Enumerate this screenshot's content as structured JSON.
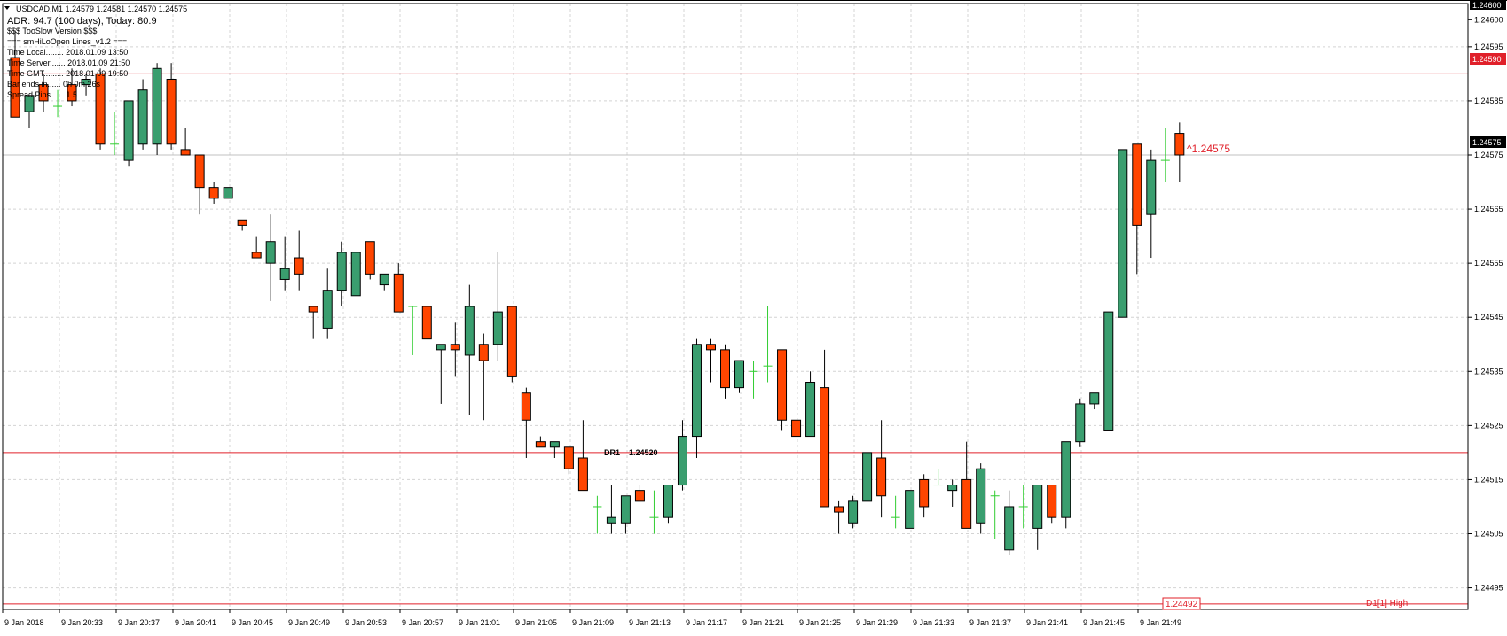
{
  "header": {
    "symbol_line": "USDCAD,M1  1.24579 1.24581 1.24570 1.24575",
    "adr_line": "ADR: 94.7 (100 days), Today: 80.9",
    "info_lines": [
      "$$$ TooSlow Version $$$",
      "=== smHiLoOpen Lines_v1.2 ===",
      "Time Local........ 2018.01.09 13:50",
      "Time Server....... 2018.01.09 21:50",
      "Time GMT......... 2018.01.09 19:50",
      "Bar ends in...... 0h 0m 26s",
      "Spread Pips...... 1.5"
    ]
  },
  "price_tags": {
    "current": "1.24575",
    "top": "1.24600",
    "upper_line": "1.24590",
    "lower_line": "1.24492"
  },
  "annotations": {
    "dr1_label": "DR1",
    "dr1_value": "1.24520",
    "bid_label": "^1.24575",
    "d1_high": "D1[1] High"
  },
  "colors": {
    "bull": "#3A9E6F",
    "bear": "#FF4500",
    "doji": "#32CD32",
    "grid": "#D4D4D4",
    "level_line": "#E0202A",
    "tag_bg": "#E0202A",
    "current_tag_bg": "#000000"
  },
  "chart_data": {
    "type": "candlestick",
    "symbol": "USDCAD",
    "timeframe": "M1",
    "ylim": [
      1.24491,
      1.24603
    ],
    "y_ticks": [
      "1.24600",
      "1.24595",
      "1.24585",
      "1.24575",
      "1.24565",
      "1.24555",
      "1.24545",
      "1.24535",
      "1.24525",
      "1.24515",
      "1.24505",
      "1.24495"
    ],
    "x_ticks": [
      "9 Jan 2018",
      "9 Jan 20:33",
      "9 Jan 20:37",
      "9 Jan 20:41",
      "9 Jan 20:45",
      "9 Jan 20:49",
      "9 Jan 20:53",
      "9 Jan 20:57",
      "9 Jan 21:01",
      "9 Jan 21:05",
      "9 Jan 21:09",
      "9 Jan 21:13",
      "9 Jan 21:17",
      "9 Jan 21:21",
      "9 Jan 21:25",
      "9 Jan 21:29",
      "9 Jan 21:33",
      "9 Jan 21:37",
      "9 Jan 21:41",
      "9 Jan 21:45",
      "9 Jan 21:49"
    ],
    "levels": [
      {
        "name": "DR1",
        "value": 1.2452
      },
      {
        "name": "upper",
        "value": 1.2459
      },
      {
        "name": "D1[1] High",
        "value": 1.24492
      }
    ],
    "candles": [
      {
        "o": 1.24593,
        "h": 1.24598,
        "l": 1.24582,
        "c": 1.24582
      },
      {
        "o": 1.24583,
        "h": 1.24586,
        "l": 1.2458,
        "c": 1.24586
      },
      {
        "o": 1.24588,
        "h": 1.2459,
        "l": 1.24583,
        "c": 1.24585
      },
      {
        "o": 1.24584,
        "h": 1.24587,
        "l": 1.24582,
        "c": 1.24584
      },
      {
        "o": 1.24588,
        "h": 1.24591,
        "l": 1.24584,
        "c": 1.24585
      },
      {
        "o": 1.24588,
        "h": 1.2459,
        "l": 1.24586,
        "c": 1.24589
      },
      {
        "o": 1.2459,
        "h": 1.24591,
        "l": 1.24576,
        "c": 1.24577
      },
      {
        "o": 1.24577,
        "h": 1.24583,
        "l": 1.24575,
        "c": 1.24577
      },
      {
        "o": 1.24574,
        "h": 1.24585,
        "l": 1.24573,
        "c": 1.24585
      },
      {
        "o": 1.24577,
        "h": 1.24589,
        "l": 1.24576,
        "c": 1.24587
      },
      {
        "o": 1.24577,
        "h": 1.24592,
        "l": 1.24575,
        "c": 1.24591
      },
      {
        "o": 1.24589,
        "h": 1.24592,
        "l": 1.24576,
        "c": 1.24577
      },
      {
        "o": 1.24576,
        "h": 1.2458,
        "l": 1.24575,
        "c": 1.24575
      },
      {
        "o": 1.24575,
        "h": 1.24575,
        "l": 1.24564,
        "c": 1.24569
      },
      {
        "o": 1.24569,
        "h": 1.2457,
        "l": 1.24566,
        "c": 1.24567
      },
      {
        "o": 1.24567,
        "h": 1.24569,
        "l": 1.24567,
        "c": 1.24569
      },
      {
        "o": 1.24563,
        "h": 1.24563,
        "l": 1.24561,
        "c": 1.24562
      },
      {
        "o": 1.24557,
        "h": 1.2456,
        "l": 1.24556,
        "c": 1.24556
      },
      {
        "o": 1.24555,
        "h": 1.24564,
        "l": 1.24548,
        "c": 1.24559
      },
      {
        "o": 1.24552,
        "h": 1.2456,
        "l": 1.2455,
        "c": 1.24554
      },
      {
        "o": 1.24556,
        "h": 1.24561,
        "l": 1.2455,
        "c": 1.24553
      },
      {
        "o": 1.24547,
        "h": 1.24547,
        "l": 1.24541,
        "c": 1.24546
      },
      {
        "o": 1.24543,
        "h": 1.24554,
        "l": 1.24541,
        "c": 1.2455
      },
      {
        "o": 1.2455,
        "h": 1.24559,
        "l": 1.24547,
        "c": 1.24557
      },
      {
        "o": 1.24549,
        "h": 1.24557,
        "l": 1.24549,
        "c": 1.24557
      },
      {
        "o": 1.24559,
        "h": 1.24559,
        "l": 1.24552,
        "c": 1.24553
      },
      {
        "o": 1.24551,
        "h": 1.24553,
        "l": 1.2455,
        "c": 1.24553
      },
      {
        "o": 1.24553,
        "h": 1.24555,
        "l": 1.24546,
        "c": 1.24546
      },
      {
        "o": 1.24547,
        "h": 1.24547,
        "l": 1.24538,
        "c": 1.24547
      },
      {
        "o": 1.24547,
        "h": 1.24547,
        "l": 1.24541,
        "c": 1.24541
      },
      {
        "o": 1.24539,
        "h": 1.2454,
        "l": 1.24529,
        "c": 1.2454
      },
      {
        "o": 1.2454,
        "h": 1.24544,
        "l": 1.24534,
        "c": 1.24539
      },
      {
        "o": 1.24538,
        "h": 1.24551,
        "l": 1.24527,
        "c": 1.24547
      },
      {
        "o": 1.2454,
        "h": 1.24542,
        "l": 1.24526,
        "c": 1.24537
      },
      {
        "o": 1.2454,
        "h": 1.24557,
        "l": 1.24537,
        "c": 1.24546
      },
      {
        "o": 1.24547,
        "h": 1.24547,
        "l": 1.24533,
        "c": 1.24534
      },
      {
        "o": 1.24531,
        "h": 1.24532,
        "l": 1.24519,
        "c": 1.24526
      },
      {
        "o": 1.24522,
        "h": 1.24523,
        "l": 1.24521,
        "c": 1.24521
      },
      {
        "o": 1.24521,
        "h": 1.24522,
        "l": 1.24519,
        "c": 1.24522
      },
      {
        "o": 1.24521,
        "h": 1.24521,
        "l": 1.24516,
        "c": 1.24517
      },
      {
        "o": 1.24519,
        "h": 1.24526,
        "l": 1.24513,
        "c": 1.24513
      },
      {
        "o": 1.2451,
        "h": 1.24512,
        "l": 1.24505,
        "c": 1.2451
      },
      {
        "o": 1.24507,
        "h": 1.24514,
        "l": 1.24505,
        "c": 1.24508
      },
      {
        "o": 1.24507,
        "h": 1.24512,
        "l": 1.24505,
        "c": 1.24512
      },
      {
        "o": 1.24513,
        "h": 1.24514,
        "l": 1.24511,
        "c": 1.24511
      },
      {
        "o": 1.24508,
        "h": 1.24513,
        "l": 1.24505,
        "c": 1.24508
      },
      {
        "o": 1.24508,
        "h": 1.24514,
        "l": 1.24507,
        "c": 1.24514
      },
      {
        "o": 1.24514,
        "h": 1.24526,
        "l": 1.24513,
        "c": 1.24523
      },
      {
        "o": 1.24523,
        "h": 1.24541,
        "l": 1.24519,
        "c": 1.2454
      },
      {
        "o": 1.2454,
        "h": 1.24541,
        "l": 1.24533,
        "c": 1.24539
      },
      {
        "o": 1.24539,
        "h": 1.2454,
        "l": 1.2453,
        "c": 1.24532
      },
      {
        "o": 1.24532,
        "h": 1.24537,
        "l": 1.24531,
        "c": 1.24537
      },
      {
        "o": 1.24535,
        "h": 1.24537,
        "l": 1.2453,
        "c": 1.24535
      },
      {
        "o": 1.24536,
        "h": 1.24547,
        "l": 1.24533,
        "c": 1.24536
      },
      {
        "o": 1.24539,
        "h": 1.24539,
        "l": 1.24524,
        "c": 1.24526
      },
      {
        "o": 1.24526,
        "h": 1.24526,
        "l": 1.24523,
        "c": 1.24523
      },
      {
        "o": 1.24523,
        "h": 1.24535,
        "l": 1.24523,
        "c": 1.24533
      },
      {
        "o": 1.24532,
        "h": 1.24539,
        "l": 1.2451,
        "c": 1.2451
      },
      {
        "o": 1.2451,
        "h": 1.24511,
        "l": 1.24505,
        "c": 1.24509
      },
      {
        "o": 1.24507,
        "h": 1.24512,
        "l": 1.24506,
        "c": 1.24511
      },
      {
        "o": 1.24511,
        "h": 1.2452,
        "l": 1.24511,
        "c": 1.2452
      },
      {
        "o": 1.24519,
        "h": 1.24526,
        "l": 1.24508,
        "c": 1.24512
      },
      {
        "o": 1.24508,
        "h": 1.24512,
        "l": 1.24506,
        "c": 1.24508
      },
      {
        "o": 1.24506,
        "h": 1.24513,
        "l": 1.24506,
        "c": 1.24513
      },
      {
        "o": 1.24515,
        "h": 1.24516,
        "l": 1.24508,
        "c": 1.2451
      },
      {
        "o": 1.24514,
        "h": 1.24517,
        "l": 1.24514,
        "c": 1.24514
      },
      {
        "o": 1.24513,
        "h": 1.24515,
        "l": 1.2451,
        "c": 1.24514
      },
      {
        "o": 1.24515,
        "h": 1.24522,
        "l": 1.24507,
        "c": 1.24506
      },
      {
        "o": 1.24507,
        "h": 1.24518,
        "l": 1.24505,
        "c": 1.24517
      },
      {
        "o": 1.24512,
        "h": 1.24513,
        "l": 1.24504,
        "c": 1.24512
      },
      {
        "o": 1.24502,
        "h": 1.24513,
        "l": 1.24501,
        "c": 1.2451
      },
      {
        "o": 1.2451,
        "h": 1.24514,
        "l": 1.24506,
        "c": 1.2451
      },
      {
        "o": 1.24506,
        "h": 1.24514,
        "l": 1.24502,
        "c": 1.24514
      },
      {
        "o": 1.24514,
        "h": 1.24514,
        "l": 1.24507,
        "c": 1.24508
      },
      {
        "o": 1.24508,
        "h": 1.24522,
        "l": 1.24506,
        "c": 1.24522
      },
      {
        "o": 1.24522,
        "h": 1.2453,
        "l": 1.24521,
        "c": 1.24529
      },
      {
        "o": 1.24529,
        "h": 1.24531,
        "l": 1.24528,
        "c": 1.24531
      },
      {
        "o": 1.24524,
        "h": 1.24546,
        "l": 1.24524,
        "c": 1.24546
      },
      {
        "o": 1.24545,
        "h": 1.24576,
        "l": 1.24545,
        "c": 1.24576
      },
      {
        "o": 1.24577,
        "h": 1.24577,
        "l": 1.24553,
        "c": 1.24562
      },
      {
        "o": 1.24564,
        "h": 1.24576,
        "l": 1.24556,
        "c": 1.24574
      },
      {
        "o": 1.24574,
        "h": 1.2458,
        "l": 1.2457,
        "c": 1.24574
      },
      {
        "o": 1.24579,
        "h": 1.24581,
        "l": 1.2457,
        "c": 1.24575
      }
    ]
  }
}
